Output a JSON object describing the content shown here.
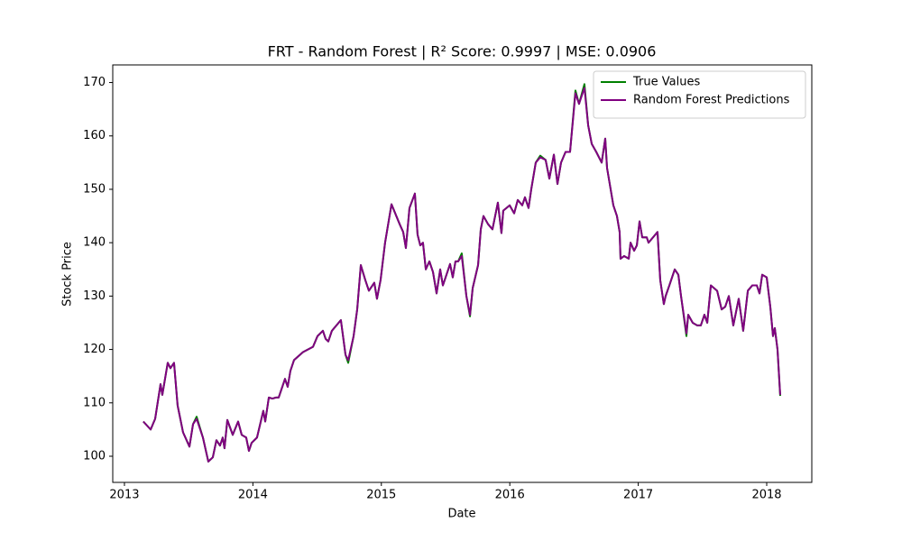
{
  "chart_data": {
    "type": "line",
    "title": "FRT - Random Forest | R² Score: 0.9997 | MSE: 0.0906",
    "x_label": "Date",
    "y_label": "Stock Price",
    "xlim": [
      2012.909,
      2018.351
    ],
    "xticks": [
      2013,
      2014,
      2015,
      2016,
      2017,
      2018
    ],
    "ylim": [
      95.1,
      173.3
    ],
    "yticks": [
      100,
      110,
      120,
      130,
      140,
      150,
      160,
      170
    ],
    "legend": "upper right",
    "grid": false,
    "x": [
      2013.147,
      2013.204,
      2013.239,
      2013.281,
      2013.295,
      2013.337,
      2013.358,
      2013.386,
      2013.414,
      2013.456,
      2013.506,
      2013.534,
      2013.562,
      2013.611,
      2013.653,
      2013.688,
      2013.716,
      2013.744,
      2013.765,
      2013.779,
      2013.801,
      2013.843,
      2013.885,
      2013.913,
      2013.948,
      2013.969,
      2013.99,
      2014.032,
      2014.081,
      2014.096,
      2014.124,
      2014.152,
      2014.18,
      2014.201,
      2014.25,
      2014.271,
      2014.292,
      2014.32,
      2014.39,
      2014.468,
      2014.503,
      2014.545,
      2014.566,
      2014.587,
      2014.615,
      2014.685,
      2014.721,
      2014.742,
      2014.784,
      2014.812,
      2014.84,
      2014.875,
      2014.903,
      2014.945,
      2014.966,
      2014.994,
      2015.029,
      2015.079,
      2015.142,
      2015.17,
      2015.191,
      2015.219,
      2015.261,
      2015.282,
      2015.303,
      2015.324,
      2015.346,
      2015.374,
      2015.402,
      2015.43,
      2015.458,
      2015.479,
      2015.5,
      2015.535,
      2015.556,
      2015.577,
      2015.598,
      2015.626,
      2015.662,
      2015.69,
      2015.711,
      2015.753,
      2015.774,
      2015.795,
      2015.83,
      2015.865,
      2015.907,
      2015.935,
      2015.949,
      2015.999,
      2016.034,
      2016.062,
      2016.097,
      2016.118,
      2016.146,
      2016.167,
      2016.202,
      2016.237,
      2016.279,
      2016.308,
      2016.343,
      2016.371,
      2016.399,
      2016.434,
      2016.469,
      2016.511,
      2016.539,
      2016.581,
      2016.61,
      2016.638,
      2016.673,
      2016.715,
      2016.743,
      2016.757,
      2016.806,
      2016.834,
      2016.855,
      2016.862,
      2016.89,
      2016.926,
      2016.94,
      2016.968,
      2016.989,
      2017.01,
      2017.031,
      2017.066,
      2017.08,
      2017.115,
      2017.15,
      2017.171,
      2017.199,
      2017.213,
      2017.242,
      2017.27,
      2017.284,
      2017.312,
      2017.333,
      2017.375,
      2017.389,
      2017.424,
      2017.459,
      2017.487,
      2017.515,
      2017.537,
      2017.565,
      2017.614,
      2017.649,
      2017.677,
      2017.705,
      2017.74,
      2017.782,
      2017.817,
      2017.853,
      2017.888,
      2017.923,
      2017.944,
      2017.965,
      2018.0,
      2018.028,
      2018.049,
      2018.063,
      2018.084,
      2018.105
    ],
    "series": [
      {
        "name": "True Values",
        "color": "#008000",
        "values": [
          106.5,
          105,
          107,
          113.5,
          111.5,
          117.5,
          116.5,
          117.5,
          109.5,
          104.5,
          101.8,
          106,
          107.4,
          103.5,
          99,
          99.8,
          103,
          102,
          103.5,
          101.5,
          106.8,
          104,
          106.5,
          104,
          103.5,
          101,
          102.5,
          103.5,
          108.5,
          106.5,
          111,
          110.8,
          111,
          111,
          114.5,
          113,
          116,
          118,
          119.5,
          120.5,
          122.5,
          123.5,
          122,
          121.5,
          123.5,
          125.5,
          119,
          117.5,
          122.5,
          127.5,
          135.8,
          133,
          131,
          132.5,
          129.5,
          133,
          140,
          147.2,
          143.5,
          142,
          139,
          146.5,
          149.2,
          141.5,
          139.5,
          140,
          135,
          136.5,
          134.5,
          130.5,
          135,
          132,
          133.5,
          136,
          133.5,
          136.5,
          136.5,
          138,
          130,
          126.2,
          131.5,
          135.8,
          142.5,
          145,
          143.5,
          142.5,
          147.5,
          141.8,
          146,
          147,
          145.5,
          148,
          147,
          148.5,
          146.5,
          150,
          155,
          156.3,
          155.5,
          152,
          156.5,
          151,
          155,
          157,
          157,
          168.5,
          166,
          169.7,
          162,
          158.5,
          157,
          155,
          159.5,
          154,
          147,
          145,
          142,
          137,
          137.5,
          137,
          140,
          138.5,
          139.5,
          144,
          141,
          141,
          140,
          141,
          142,
          133,
          128.5,
          130,
          132,
          134,
          135,
          134,
          130,
          122.5,
          126.5,
          125,
          124.5,
          124.5,
          126.5,
          125,
          132,
          131,
          127.5,
          128,
          130,
          124.5,
          129.5,
          123.5,
          131,
          132,
          132,
          130.5,
          134,
          133.5,
          128,
          122.5,
          124,
          120,
          111.3
        ]
      },
      {
        "name": "Random Forest Predictions",
        "color": "#800080",
        "values": [
          106.5,
          105,
          107,
          113.5,
          111.5,
          117.5,
          116.5,
          117.5,
          109.5,
          104.5,
          101.8,
          106,
          107,
          103.5,
          99,
          99.8,
          103,
          102,
          103.5,
          101.5,
          106.8,
          104,
          106.5,
          104,
          103.5,
          101,
          102.5,
          103.5,
          108.5,
          106.5,
          111,
          110.8,
          111,
          111,
          114.5,
          113,
          116,
          118,
          119.5,
          120.5,
          122.5,
          123.5,
          122,
          121.5,
          123.5,
          125.5,
          119,
          118,
          122.5,
          127.5,
          135.8,
          133,
          131,
          132.5,
          129.5,
          133,
          140,
          147.2,
          143.5,
          142,
          139,
          146.5,
          149.2,
          141.5,
          139.5,
          140,
          135,
          136.5,
          134.5,
          130.5,
          135,
          132,
          133.5,
          136,
          133.5,
          136.5,
          136.5,
          137.5,
          130,
          126.5,
          131.5,
          135.8,
          142.5,
          145,
          143.5,
          142.5,
          147.5,
          141.8,
          146,
          147,
          145.5,
          148,
          147,
          148.5,
          146.5,
          150,
          155,
          156,
          155.5,
          152,
          156.5,
          151,
          155,
          157,
          157,
          168,
          166,
          169,
          162,
          158.5,
          157,
          155,
          159.5,
          154,
          147,
          145,
          142,
          137,
          137.5,
          137,
          140,
          138.5,
          139.5,
          144,
          141,
          141,
          140,
          141,
          142,
          133,
          128.5,
          130,
          132,
          134,
          135,
          134,
          130,
          123,
          126.5,
          125,
          124.5,
          124.5,
          126.5,
          125,
          132,
          131,
          127.5,
          128,
          130,
          124.5,
          129.5,
          123.5,
          131,
          132,
          132,
          130.5,
          134,
          133.5,
          128,
          122.5,
          124,
          120,
          111.5
        ]
      }
    ]
  }
}
